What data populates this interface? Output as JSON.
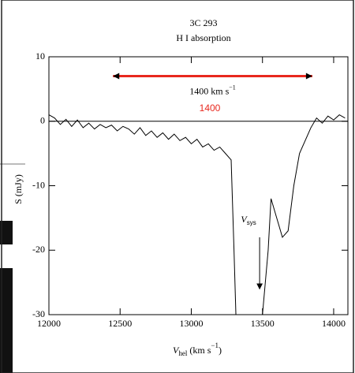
{
  "chart_data": {
    "type": "line",
    "title": "3C 293",
    "subtitle": "H I absorption",
    "y_label": "S (mJy)",
    "x_label": {
      "main": "V",
      "sub": "hel",
      "unit": " (km s",
      "sup": "−1",
      "close": ")"
    },
    "x": [
      12000,
      12040,
      12080,
      12120,
      12160,
      12200,
      12240,
      12280,
      12320,
      12360,
      12400,
      12440,
      12480,
      12520,
      12560,
      12600,
      12640,
      12680,
      12720,
      12760,
      12800,
      12840,
      12880,
      12920,
      12960,
      13000,
      13040,
      13080,
      13120,
      13160,
      13200,
      13240,
      13280,
      13300,
      13320,
      13360,
      13400,
      13440,
      13480,
      13520,
      13540,
      13560,
      13600,
      13640,
      13680,
      13720,
      13760,
      13800,
      13840,
      13880,
      13920,
      13960,
      14000,
      14040,
      14080
    ],
    "series": [
      {
        "name": "spectrum",
        "color": "#000000",
        "values": [
          1,
          0.5,
          -0.5,
          0.3,
          -0.8,
          0.2,
          -1,
          -0.3,
          -1.2,
          -0.5,
          -1,
          -0.6,
          -1.5,
          -0.8,
          -1.2,
          -2,
          -1,
          -2.2,
          -1.5,
          -2.5,
          -1.8,
          -2.8,
          -2,
          -3,
          -2.5,
          -3.5,
          -2.8,
          -4,
          -3.5,
          -4.5,
          -4,
          -5,
          -6,
          -20,
          -35,
          -35,
          -35,
          -35,
          -35,
          -25,
          -20,
          -12,
          -15,
          -18,
          -17,
          -10,
          -5,
          -3,
          -1,
          0.5,
          -0.3,
          0.8,
          0.2,
          1,
          0.5
        ]
      }
    ],
    "xlim": [
      12000,
      14100
    ],
    "ylim": [
      -30,
      10
    ],
    "xticks": [
      12000,
      12500,
      13000,
      13500,
      14000
    ],
    "yticks": [
      10,
      0,
      -10,
      -20,
      -30
    ],
    "zero_line": 0,
    "span": {
      "x": [
        12450,
        13850
      ],
      "y": 7,
      "label": "1400 km s",
      "sup": "−1",
      "color": "#e8281e",
      "big_label": "1400"
    },
    "vsys": {
      "x": 13480,
      "y": [
        -18,
        -26
      ],
      "label": "V",
      "sub": "sys"
    }
  }
}
